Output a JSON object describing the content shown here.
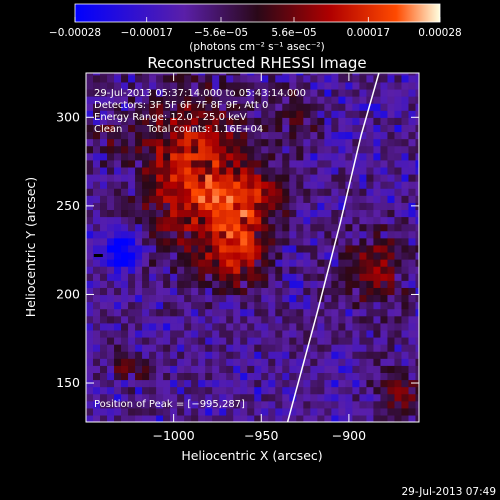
{
  "chart_data": {
    "type": "heatmap",
    "title": "Reconstructed RHESSI Image",
    "xlabel": "Heliocentric X (arcsec)",
    "ylabel": "Heliocentric Y (arcsec)",
    "xlim": [
      -1050,
      -860
    ],
    "ylim": [
      128,
      325
    ],
    "xticks": [
      -1000,
      -950,
      -900
    ],
    "xtick_labels": [
      "−1000",
      "−950",
      "−900"
    ],
    "yticks": [
      150,
      200,
      250,
      300
    ],
    "ytick_labels": [
      "150",
      "200",
      "250",
      "300"
    ],
    "colorbar": {
      "min": -0.00028,
      "max": 0.00028,
      "ticks": [
        -0.00028,
        -0.00017,
        -5.6e-05,
        5.6e-05,
        0.00017,
        0.00028
      ],
      "tick_labels": [
        "−0.00028",
        "−0.00017",
        "−5.6e−05",
        "5.6e−05",
        "0.00017",
        "0.00028"
      ],
      "units": "(photons cm⁻² s⁻¹ asec⁻²)",
      "colors": [
        "#0000ff",
        "#5a1fa8",
        "#3a0a1a",
        "#b00000",
        "#ff4a00",
        "#ffffe0"
      ]
    },
    "annotations": {
      "time_range": "29-Jul-2013 05:37:14.000 to 05:43:14.000",
      "detectors": "Detectors: 3F 5F 6F 7F 8F 9F, Att 0",
      "energy": "Energy Range: 12.0 - 25.0 keV",
      "method": "Clean",
      "counts": "Total counts: 1.16E+04",
      "peak": "Position of Peak = [−995,287]"
    },
    "limb": [
      [
        -935,
        128
      ],
      [
        -918,
        190
      ],
      [
        -905,
        240
      ],
      [
        -893,
        290
      ],
      [
        -882,
        328
      ]
    ],
    "peak": [
      -995,
      287
    ],
    "hot_regions": [
      {
        "x": -990,
        "y": 270,
        "rx": 32,
        "ry": 45,
        "v": 0.00024
      },
      {
        "x": -965,
        "y": 225,
        "rx": 18,
        "ry": 20,
        "v": 0.00022
      },
      {
        "x": -960,
        "y": 255,
        "rx": 22,
        "ry": 18,
        "v": 0.00018
      },
      {
        "x": -885,
        "y": 215,
        "rx": 20,
        "ry": 22,
        "v": 0.00015
      },
      {
        "x": -930,
        "y": 300,
        "rx": 12,
        "ry": 15,
        "v": 0.00012
      },
      {
        "x": -1025,
        "y": 160,
        "rx": 15,
        "ry": 10,
        "v": 0.0001
      },
      {
        "x": -870,
        "y": 145,
        "rx": 15,
        "ry": 15,
        "v": 0.00012
      },
      {
        "x": -1040,
        "y": 290,
        "rx": 10,
        "ry": 10,
        "v": 8e-05
      },
      {
        "x": -1030,
        "y": 225,
        "rx": 10,
        "ry": 12,
        "v": -0.00025
      }
    ]
  },
  "footer": {
    "date": "29-Jul-2013 07:49"
  }
}
